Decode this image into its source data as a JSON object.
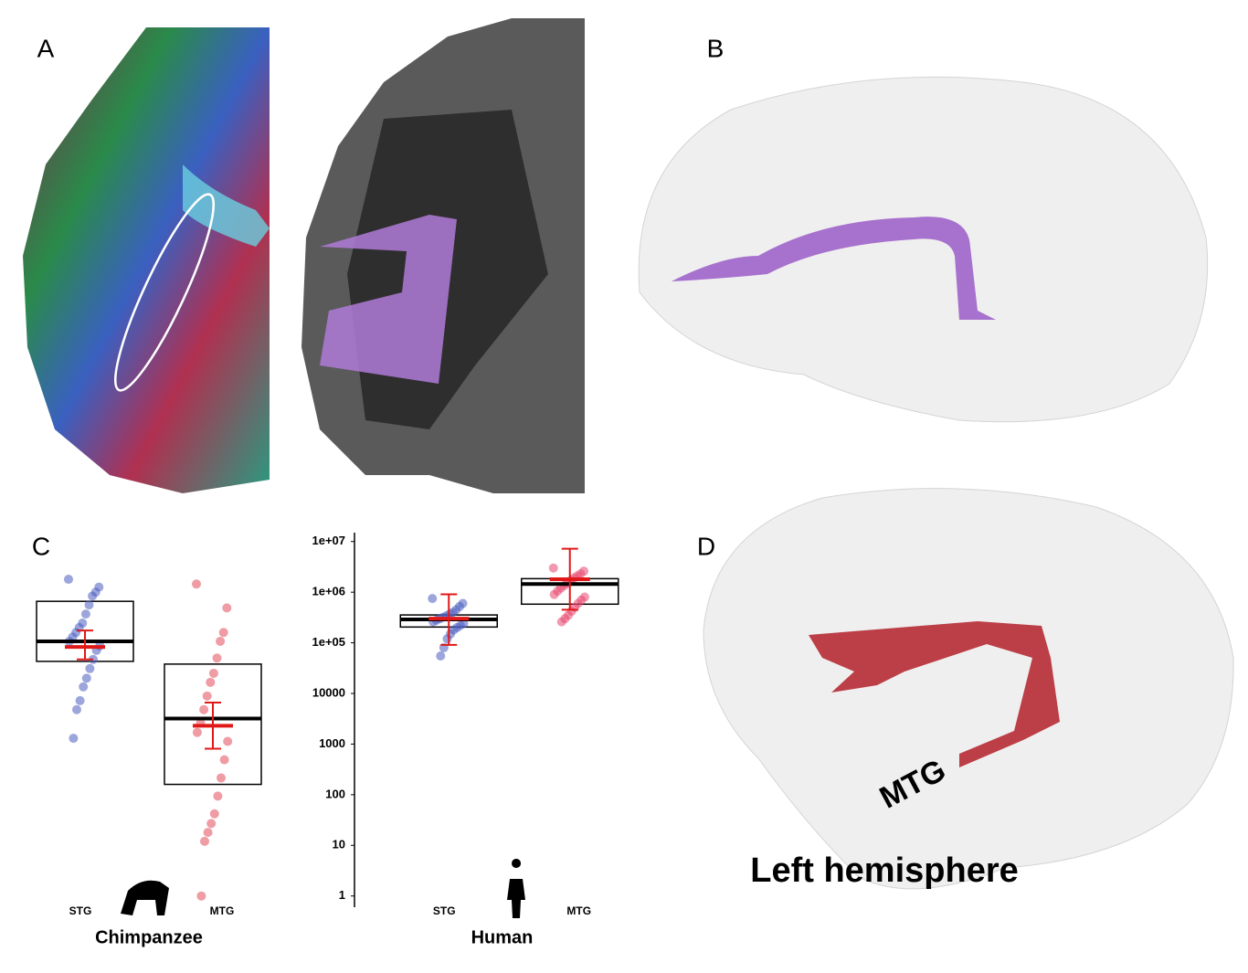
{
  "panels": {
    "a": "A",
    "b": "B",
    "c": "C",
    "d": "D",
    "tract_label": "MTG",
    "hemisphere_label": "Left hemisphere"
  },
  "chart_data": [
    {
      "type": "box",
      "xlabel": "Chimpanzee",
      "categories": [
        "STG",
        "MTG"
      ],
      "colors": [
        "#4a5cc0",
        "#e24a5a"
      ],
      "log_scale": true,
      "ylim": [
        0.6,
        15000000
      ],
      "boxes": [
        {
          "q1": 43000,
          "median": 107000,
          "q3": 660000,
          "mean": 83000,
          "mean_ci": [
            47000,
            175000
          ],
          "points": [
            1800000,
            1260000,
            1000000,
            840000,
            560000,
            370000,
            245000,
            200000,
            160000,
            130000,
            107000,
            87000,
            71000,
            47000,
            31000,
            20000,
            13500,
            7200,
            4800,
            1300
          ]
        },
        {
          "q1": 160,
          "median": 3200,
          "q3": 38000,
          "mean": 2300,
          "mean_ci": [
            810,
            6600
          ],
          "points": [
            1450000,
            490000,
            160000,
            107000,
            50000,
            25000,
            16600,
            8900,
            4800,
            2600,
            1700,
            1130,
            490,
            215,
            94,
            42,
            27,
            18,
            12,
            1
          ]
        }
      ]
    },
    {
      "type": "box",
      "xlabel": "Human",
      "categories": [
        "STG",
        "MTG"
      ],
      "colors": [
        "#4a5cc0",
        "#e8456e"
      ],
      "log_scale": true,
      "ylim": [
        0.6,
        15000000
      ],
      "yticks": [
        {
          "value": 10000000,
          "label": "1e+07"
        },
        {
          "value": 1000000,
          "label": "1e+06"
        },
        {
          "value": 100000,
          "label": "1e+05"
        },
        10000,
        1000,
        100,
        10,
        1
      ],
      "boxes": [
        {
          "q1": 205000,
          "median": 290000,
          "q3": 355000,
          "mean": 300000,
          "mean_ci": [
            91000,
            910000
          ],
          "points": [
            750000,
            600000,
            520000,
            450000,
            400000,
            370000,
            340000,
            320000,
            300000,
            280000,
            260000,
            240000,
            220000,
            200000,
            180000,
            150000,
            120000,
            80000,
            55000
          ]
        },
        {
          "q1": 580000,
          "median": 1450000,
          "q3": 1850000,
          "mean": 1800000,
          "mean_ci": [
            450000,
            7200000
          ],
          "points": [
            3000000,
            2600000,
            2300000,
            2100000,
            1900000,
            1700000,
            1500000,
            1350000,
            1200000,
            1050000,
            900000,
            800000,
            700000,
            600000,
            500000,
            420000,
            350000,
            300000,
            260000
          ]
        }
      ]
    }
  ]
}
